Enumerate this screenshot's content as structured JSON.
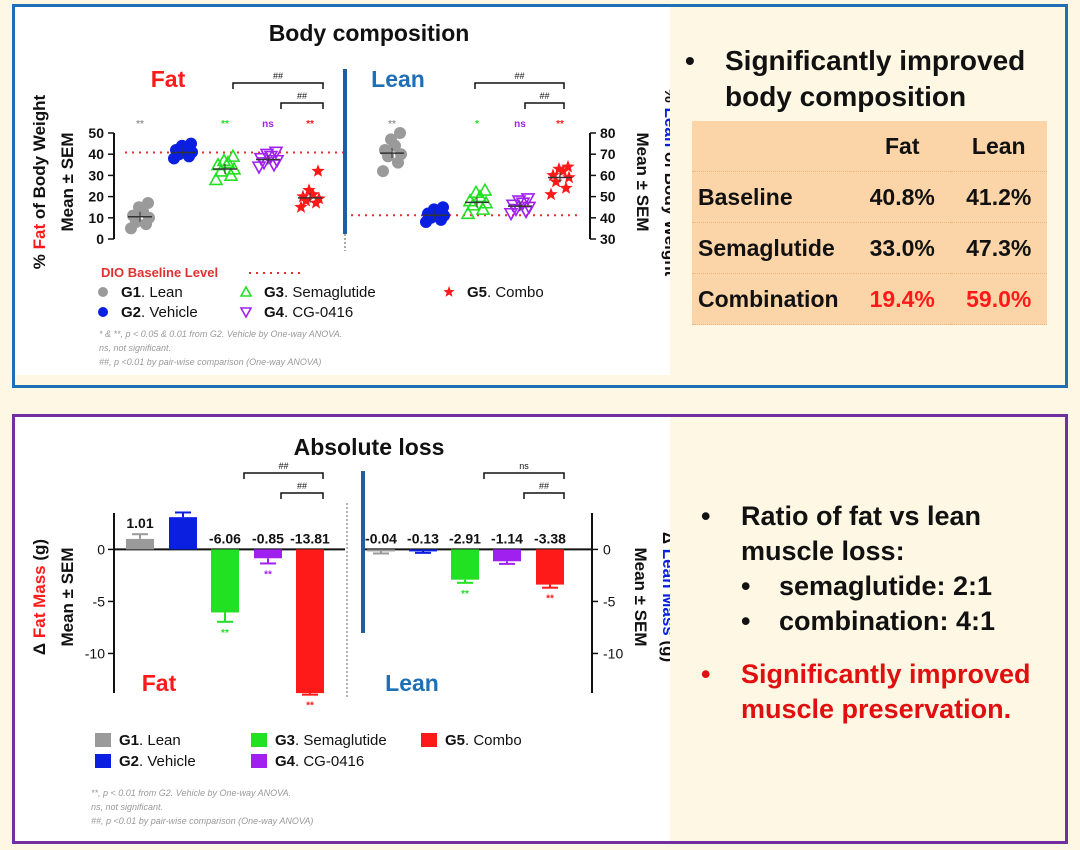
{
  "colors": {
    "lean_gray": "#9a9a9a",
    "vehicle_blue": "#0a1fe0",
    "sema_green": "#22e022",
    "cg_purple": "#a020f0",
    "combo_red": "#ff1a1a",
    "top_border": "#1f6fb5",
    "bottom_border": "#7030a0",
    "divider": "#1f5f9f",
    "table_bg": "#fbd5a8"
  },
  "top": {
    "bullet": "Significantly improved body composition",
    "table": {
      "headers": [
        "Fat",
        "Lean"
      ],
      "rows": [
        {
          "label": "Baseline",
          "fat": "40.8%",
          "lean": "41.2%",
          "highlight": false
        },
        {
          "label": "Semaglutide",
          "fat": "33.0%",
          "lean": "47.3%",
          "highlight": false
        },
        {
          "label": "Combination",
          "fat": "19.4%",
          "lean": "59.0%",
          "highlight": true
        }
      ]
    }
  },
  "bottom": {
    "bullets": [
      {
        "text": "Ratio of fat vs lean muscle loss:",
        "color": "#111111",
        "sub": [
          "semaglutide:  2:1",
          "combination:  4:1"
        ]
      },
      {
        "text": "Significantly improved muscle preservation.",
        "color": "#e01010",
        "sub": []
      }
    ]
  },
  "chart_data": [
    {
      "type": "scatter",
      "title": "Body composition",
      "panels": [
        {
          "name": "Fat",
          "ylabel": "% Fat of Body Weight",
          "ylabel_sub": "Mean ± SEM",
          "ylim": [
            0,
            50
          ],
          "yticks": [
            0,
            10,
            20,
            30,
            40,
            50
          ],
          "baseline": 40.8
        },
        {
          "name": "Lean",
          "ylabel": "% Lean of Body Weight",
          "ylabel_sub": "Mean ± SEM",
          "ylim": [
            30,
            80
          ],
          "yticks": [
            30,
            40,
            50,
            60,
            70,
            80
          ],
          "baseline": 41.2
        }
      ],
      "groups": [
        {
          "id": "G1",
          "label": "Lean",
          "marker": "circle",
          "color": "#9a9a9a",
          "fat": [
            5,
            7,
            8,
            10,
            11,
            13,
            15,
            17
          ],
          "fat_mean": 10.5,
          "lean": [
            62,
            66,
            69,
            70,
            72,
            74,
            77,
            80
          ],
          "lean_mean": 70.5
        },
        {
          "id": "G2",
          "label": "Vehicle",
          "marker": "circle",
          "color": "#0a1fe0",
          "fat": [
            38,
            39,
            40,
            41,
            42,
            43,
            44,
            45
          ],
          "fat_mean": 40.8,
          "lean": [
            38,
            39,
            40,
            41,
            42,
            43,
            44,
            45
          ],
          "lean_mean": 41.2
        },
        {
          "id": "G3",
          "label": "Semaglutide",
          "marker": "triangle",
          "color": "#22e022",
          "fat": [
            28,
            30,
            32,
            33,
            35,
            36,
            37,
            39
          ],
          "fat_mean": 33.0,
          "lean": [
            42,
            44,
            46,
            47,
            48,
            50,
            52,
            53
          ],
          "lean_mean": 47.3
        },
        {
          "id": "G4",
          "label": "CG-0416",
          "marker": "triangle-down",
          "color": "#a020f0",
          "fat": [
            34,
            35,
            36,
            37,
            38,
            39,
            40,
            41
          ],
          "fat_mean": 37.5,
          "lean": [
            42,
            43,
            44,
            45,
            46,
            47,
            48,
            49
          ],
          "lean_mean": 45.5
        },
        {
          "id": "G5",
          "label": "Combo",
          "marker": "star",
          "color": "#ff1a1a",
          "fat": [
            15,
            17,
            18,
            19,
            20,
            21,
            23,
            32
          ],
          "fat_mean": 19.4,
          "lean": [
            51,
            54,
            57,
            59,
            60,
            62,
            63,
            64
          ],
          "lean_mean": 59.0
        }
      ],
      "significance": {
        "fat": [
          "**",
          "",
          "**",
          "ns",
          "**"
        ],
        "lean": [
          "**",
          "",
          "*",
          "ns",
          "**"
        ]
      },
      "brackets": "##",
      "baseline_legend": "DIO Baseline Level",
      "footnotes": [
        "* & **, p < 0.05 & 0.01 from G2. Vehicle by One-way ANOVA.",
        "ns, not significant.",
        "##, p <0.01 by pair-wise comparison (One-way ANOVA)"
      ]
    },
    {
      "type": "bar",
      "title": "Absolute loss",
      "panels": [
        {
          "name": "Fat",
          "ylabel": "Δ Fat Mass (g)",
          "ylabel_sub": "Mean ± SEM",
          "ylim": [
            -13.8,
            3.5
          ],
          "yticks": [
            0,
            -5,
            -10
          ]
        },
        {
          "name": "Lean",
          "ylabel": "Δ Lean Mass (g)",
          "ylabel_sub": "Mean ± SEM",
          "ylim": [
            -13.8,
            3.5
          ],
          "yticks": [
            0,
            -5,
            -10
          ]
        }
      ],
      "groups": [
        {
          "id": "G1",
          "label": "Lean",
          "color": "#9a9a9a"
        },
        {
          "id": "G2",
          "label": "Vehicle",
          "color": "#0a1fe0"
        },
        {
          "id": "G3",
          "label": "Semaglutide",
          "color": "#22e022"
        },
        {
          "id": "G4",
          "label": "CG-0416",
          "color": "#a020f0"
        },
        {
          "id": "G5",
          "label": "Combo",
          "color": "#ff1a1a"
        }
      ],
      "fat_values": [
        1.01,
        3.1,
        -6.06,
        -0.85,
        -13.81
      ],
      "fat_errors": [
        0.45,
        0.45,
        0.9,
        0.5,
        0.15
      ],
      "fat_labels": [
        "1.01",
        "",
        "-6.06",
        "-0.85",
        "-13.81"
      ],
      "fat_sig": [
        "",
        "",
        "**",
        "**",
        "**"
      ],
      "lean_values": [
        -0.04,
        -0.13,
        -2.91,
        -1.14,
        -3.38
      ],
      "lean_errors": [
        0.35,
        0.2,
        0.3,
        0.25,
        0.3
      ],
      "lean_labels": [
        "-0.04",
        "-0.13",
        "-2.91",
        "-1.14",
        "-3.38"
      ],
      "lean_sig": [
        "",
        "",
        "**",
        "",
        "**"
      ],
      "fat_brackets": [
        "##",
        "##"
      ],
      "lean_brackets": [
        "ns",
        "##"
      ],
      "footnotes": [
        "**, p <  0.01 from G2. Vehicle by One-way ANOVA.",
        "ns, not significant.",
        "##, p <0.01 by pair-wise comparison (One-way ANOVA)"
      ]
    }
  ]
}
